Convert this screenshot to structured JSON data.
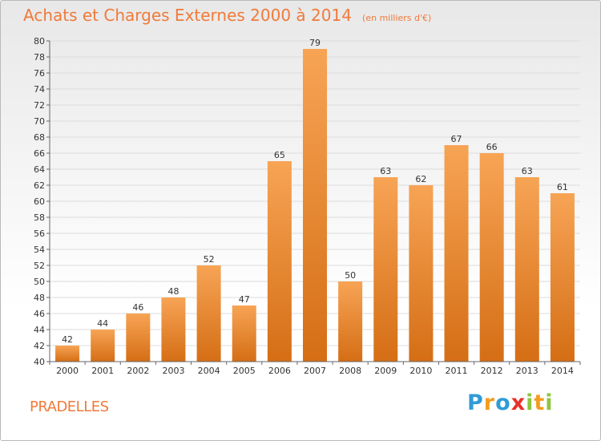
{
  "title": "Achats et Charges Externes 2000 à 2014",
  "unit_note": "(en milliers d'€)",
  "town": "PRADELLES",
  "logo": {
    "letters": [
      "P",
      "r",
      "o",
      "x",
      "i",
      "t",
      "i"
    ],
    "colors": [
      "#2f9bd7",
      "#f39c1e",
      "#2f9bd7",
      "#e8302a",
      "#8cc63f",
      "#f39c1e",
      "#8cc63f"
    ]
  },
  "colors": {
    "bar_top": "#f7a455",
    "bar_bottom": "#d56e15",
    "text_accent": "#f07a3a"
  },
  "chart_data": {
    "type": "bar",
    "title": "Achats et Charges Externes 2000 à 2014",
    "subtitle": "(en milliers d'€)",
    "categories": [
      "2000",
      "2001",
      "2002",
      "2003",
      "2004",
      "2005",
      "2006",
      "2007",
      "2008",
      "2009",
      "2010",
      "2011",
      "2012",
      "2013",
      "2014"
    ],
    "values": [
      42,
      44,
      46,
      48,
      52,
      47,
      65,
      79,
      50,
      63,
      62,
      67,
      66,
      63,
      61
    ],
    "ylim": [
      40,
      80
    ],
    "yticks": [
      40,
      42,
      44,
      46,
      48,
      50,
      52,
      54,
      56,
      58,
      60,
      62,
      64,
      66,
      68,
      70,
      72,
      74,
      76,
      78,
      80
    ],
    "grid": true,
    "legend": "none"
  }
}
